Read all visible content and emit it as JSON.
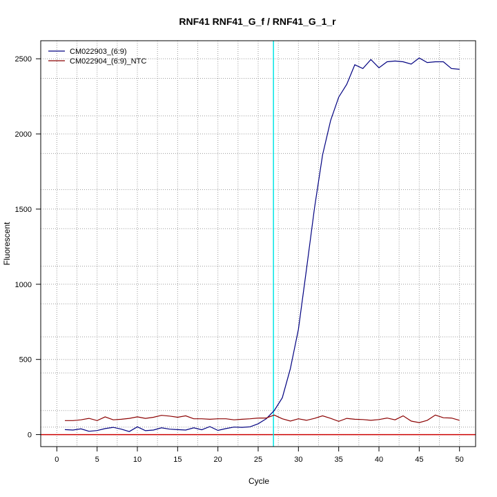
{
  "chart_data": {
    "type": "line",
    "title": "RNF41  RNF41_G_f / RNF41_G_1_r",
    "xlabel": "Cycle",
    "ylabel": "Fluorescent",
    "xlim": [
      -2,
      52
    ],
    "ylim": [
      -80,
      2620
    ],
    "xticks": [
      0,
      5,
      10,
      15,
      20,
      25,
      30,
      35,
      40,
      45,
      50
    ],
    "yticks": [
      0,
      500,
      1000,
      1500,
      2000,
      2500
    ],
    "x_grid": [
      2.5,
      7.5,
      12.5,
      17.5,
      22.5,
      27.5,
      32.5,
      37.5,
      42.5,
      47.5
    ],
    "y_grid": [
      50,
      160,
      410,
      650,
      870,
      1120,
      1370,
      1630,
      1870,
      2120,
      2370
    ],
    "grid": true,
    "legend_position": "top-left",
    "threshold_line": {
      "x": 26.9,
      "color": "#00e5e5"
    },
    "baseline": {
      "y": 0,
      "color": "#cc0000"
    },
    "x": [
      1,
      2,
      3,
      4,
      5,
      6,
      7,
      8,
      9,
      10,
      11,
      12,
      13,
      14,
      15,
      16,
      17,
      18,
      19,
      20,
      21,
      22,
      23,
      24,
      25,
      26,
      27,
      28,
      29,
      30,
      31,
      32,
      33,
      34,
      35,
      36,
      37,
      38,
      39,
      40,
      41,
      42,
      43,
      44,
      45,
      46,
      47,
      48,
      49,
      50
    ],
    "series": [
      {
        "name": "CM022903_(6:9)",
        "color": "#000080",
        "values": [
          33,
          30,
          38,
          22,
          27,
          40,
          48,
          36,
          20,
          52,
          26,
          30,
          45,
          36,
          33,
          30,
          45,
          32,
          53,
          28,
          40,
          50,
          48,
          52,
          72,
          105,
          160,
          245,
          440,
          700,
          1100,
          1510,
          1860,
          2090,
          2245,
          2330,
          2460,
          2435,
          2495,
          2440,
          2480,
          2485,
          2480,
          2465,
          2505,
          2475,
          2480,
          2480,
          2435,
          2430
        ]
      },
      {
        "name": "CM022904_(6:9)_NTC",
        "color": "#8b0000",
        "values": [
          93,
          93,
          98,
          108,
          93,
          118,
          98,
          102,
          108,
          118,
          108,
          115,
          128,
          123,
          115,
          125,
          105,
          105,
          102,
          105,
          105,
          98,
          102,
          105,
          110,
          110,
          130,
          105,
          90,
          105,
          95,
          108,
          125,
          108,
          88,
          108,
          102,
          100,
          95,
          100,
          110,
          98,
          125,
          90,
          80,
          95,
          130,
          112,
          110,
          95
        ]
      }
    ]
  }
}
